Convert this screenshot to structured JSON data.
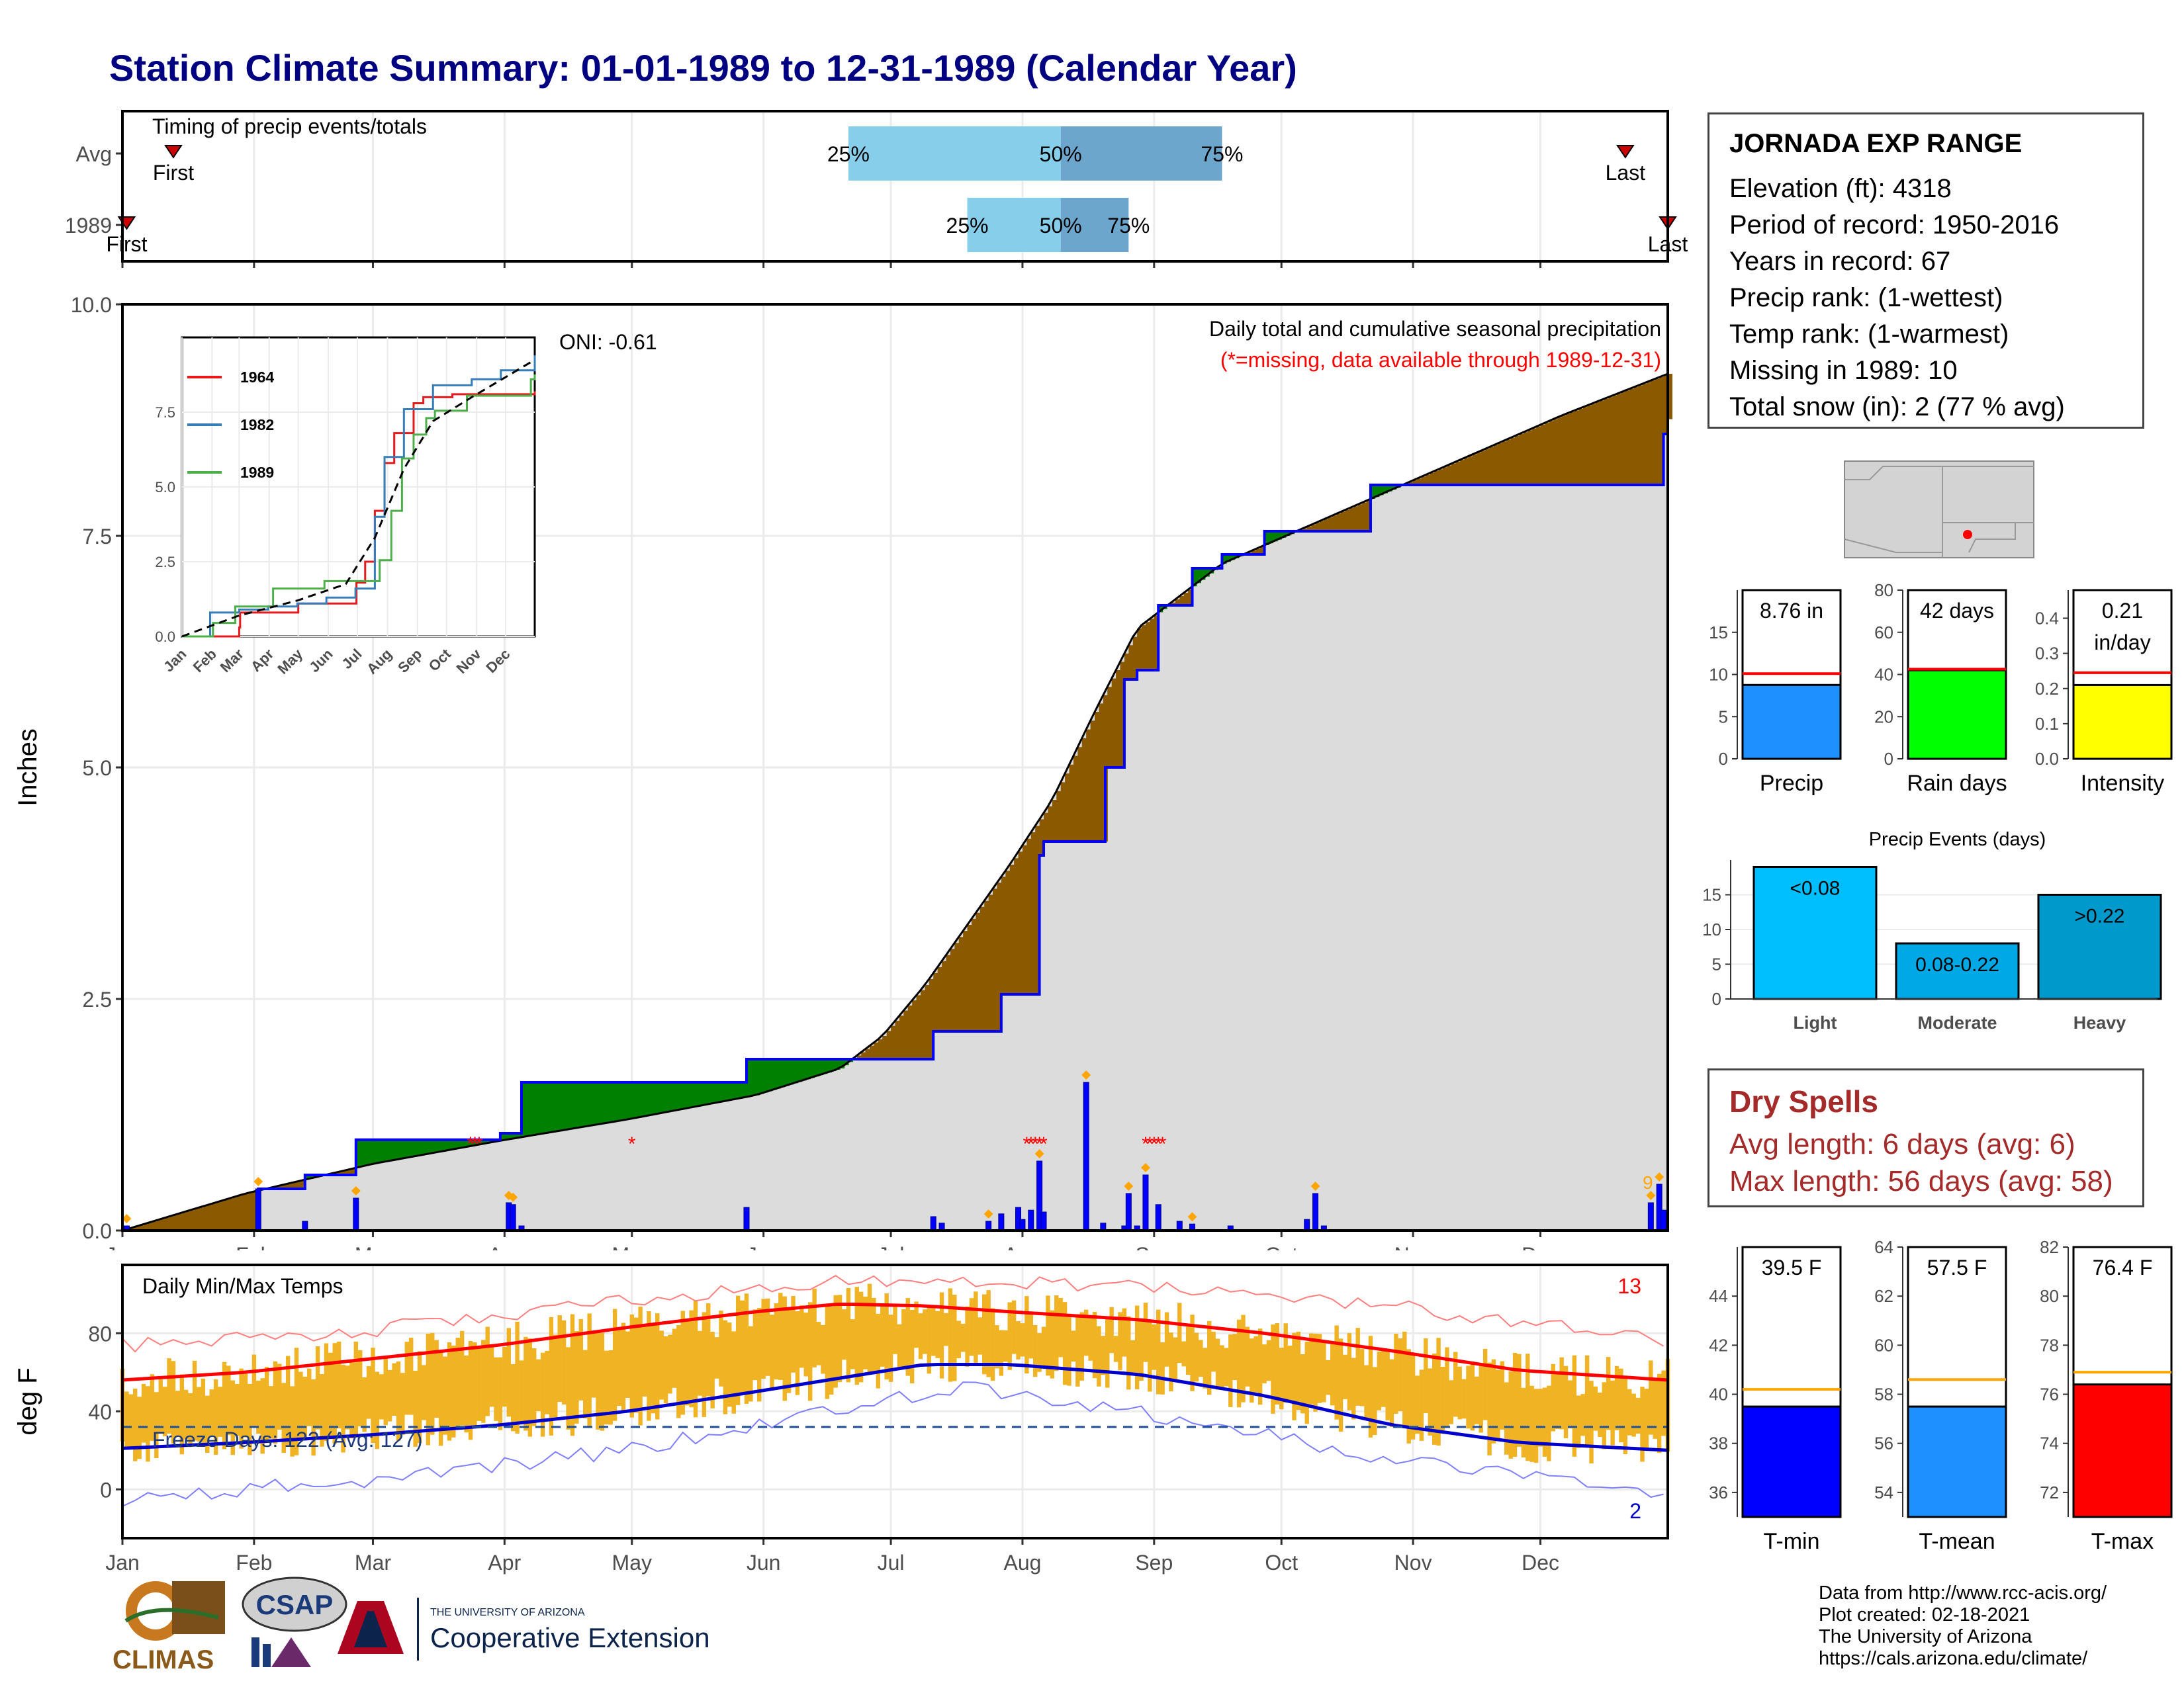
{
  "title": "Station Climate Summary: 01-01-1989 to 12-31-1989 (Calendar Year)",
  "timing": {
    "label": "Timing of precip events/totals",
    "rows": [
      "Avg",
      "1989"
    ],
    "avg": {
      "first": "First",
      "last": "Last",
      "q25": "25%",
      "q50": "50%",
      "q75": "75%",
      "first_doy": 13,
      "last_doy": 355,
      "p25_doy": 172,
      "p50_doy": 222,
      "p75_doy": 260
    },
    "y1989": {
      "first": "First",
      "last": "Last",
      "q25": "25%",
      "q50": "50%",
      "q75": "75%",
      "first_doy": 2,
      "last_doy": 365,
      "p25_doy": 200,
      "p50_doy": 222,
      "p75_doy": 238
    }
  },
  "station": {
    "name": "JORNADA EXP RANGE",
    "lines": [
      "Elevation (ft): 4318",
      "Period of record: 1950-2016",
      "Years in record: 67",
      "Precip rank:  (1-wettest)",
      "Temp rank:  (1-warmest)",
      "Missing in 1989: 10",
      "Total snow (in): 2 (77 % avg)"
    ]
  },
  "summary_bars": [
    {
      "label": "Precip",
      "value": 8.76,
      "value_text": "8.76 in",
      "avg": 10.1,
      "ylim": [
        0,
        20
      ],
      "ticks": [
        0,
        5,
        10,
        15
      ],
      "color": "#1e90ff"
    },
    {
      "label": "Rain days",
      "value": 42,
      "value_text": "42 days",
      "avg": 42.5,
      "ylim": [
        0,
        80
      ],
      "ticks": [
        0,
        20,
        40,
        60,
        80
      ],
      "color": "#00ff00"
    },
    {
      "label": "Intensity",
      "value": 0.21,
      "value_text": "0.21 in/day",
      "avg": 0.245,
      "ylim": [
        0,
        0.48
      ],
      "ticks": [
        0.0,
        0.1,
        0.2,
        0.3,
        0.4
      ],
      "color": "#ffff00"
    }
  ],
  "precip_events": {
    "title": "Precip Events (days)",
    "ylim": [
      0,
      20
    ],
    "ticks": [
      0,
      5,
      10,
      15
    ],
    "bars": [
      {
        "label": "Light",
        "value": 19,
        "text": "<0.08",
        "color": "#00bfff"
      },
      {
        "label": "Moderate",
        "value": 8,
        "text": "0.08-0.22",
        "color": "#00a9e6"
      },
      {
        "label": "Heavy",
        "value": 15,
        "text": ">0.22",
        "color": "#0099cc"
      }
    ]
  },
  "dry_spells": {
    "heading": "Dry Spells",
    "lines": [
      "Avg length: 6 days (avg: 6)",
      "Max length: 56 days (avg: 58)"
    ]
  },
  "temp_bars": [
    {
      "label": "T-min",
      "value": 39.5,
      "value_text": "39.5 F",
      "avg": 40.2,
      "ylim": [
        35,
        46
      ],
      "ticks": [
        36,
        38,
        40,
        42,
        44
      ],
      "color": "#0000ff"
    },
    {
      "label": "T-mean",
      "value": 57.5,
      "value_text": "57.5 F",
      "avg": 58.6,
      "ylim": [
        53,
        64
      ],
      "ticks": [
        54,
        56,
        58,
        60,
        62,
        64
      ],
      "color": "#1e90ff"
    },
    {
      "label": "T-max",
      "value": 76.4,
      "value_text": "76.4 F",
      "avg": 76.9,
      "ylim": [
        71,
        82
      ],
      "ticks": [
        72,
        74,
        76,
        78,
        80,
        82
      ],
      "color": "#ff0000"
    }
  ],
  "chart_data": [
    {
      "type": "area",
      "ylabel": "Inches",
      "ylim": [
        0,
        10
      ],
      "yticks": [
        0.0,
        2.5,
        5.0,
        7.5,
        10.0
      ],
      "months": [
        "Jan",
        "Feb",
        "Mar",
        "Apr",
        "May",
        "Jun",
        "Jul",
        "Aug",
        "Sep",
        "Oct",
        "Nov",
        "Dec"
      ],
      "annotation": "Daily total and cumulative seasonal precipitation",
      "missing_note": "(*=missing, data available through 1989-12-31)",
      "oni": "ONI: -0.61",
      "corner_count": "9",
      "avg_cumulative": {
        "doy": [
          1,
          30,
          60,
          90,
          120,
          150,
          170,
          180,
          190,
          200,
          210,
          220,
          230,
          240,
          260,
          280,
          300,
          320,
          340,
          365
        ],
        "inches": [
          0,
          0.4,
          0.72,
          0.97,
          1.2,
          1.46,
          1.75,
          2.1,
          2.65,
          3.3,
          3.95,
          4.65,
          5.6,
          6.5,
          7.2,
          7.6,
          8.0,
          8.4,
          8.8,
          9.25
        ]
      },
      "cumulative_1989": {
        "doy": [
          1,
          33,
          44,
          56,
          90,
          95,
          135,
          148,
          190,
          192,
          205,
          208,
          217,
          218,
          232,
          232.5,
          237,
          240,
          245,
          252,
          253,
          260,
          262,
          270,
          290,
          295,
          300,
          361,
          364,
          365
        ],
        "inches": [
          0,
          0.45,
          0.6,
          0.98,
          1.05,
          1.6,
          1.6,
          1.85,
          1.85,
          2.15,
          2.15,
          2.55,
          4.05,
          4.2,
          4.2,
          5.0,
          5.95,
          6.05,
          6.75,
          6.75,
          7.15,
          7.3,
          7.3,
          7.55,
          7.55,
          8.05,
          8.05,
          8.05,
          8.6,
          8.76
        ]
      },
      "daily_1989": {
        "doy": [
          2,
          33,
          44,
          56,
          92,
          93,
          95,
          148,
          192,
          194,
          205,
          208,
          212,
          213,
          215,
          217,
          218,
          228,
          232,
          237,
          238,
          240,
          242,
          245,
          250,
          253,
          262,
          280,
          282,
          284,
          361,
          363,
          364
        ],
        "inches": [
          0.05,
          0.45,
          0.1,
          0.35,
          0.3,
          0.28,
          0.05,
          0.25,
          0.15,
          0.08,
          0.1,
          0.18,
          0.25,
          0.12,
          0.22,
          0.75,
          0.2,
          1.6,
          0.08,
          0.05,
          0.4,
          0.05,
          0.6,
          0.28,
          0.1,
          0.07,
          0.05,
          0.12,
          0.4,
          0.05,
          0.3,
          0.5,
          0.22
        ]
      },
      "missing_doy": [
        83,
        84,
        85,
        121,
        214,
        215,
        216,
        217,
        218,
        242,
        243,
        244,
        245,
        246
      ]
    },
    {
      "type": "line",
      "title": "Daily Min/Max Temps",
      "ylabel": "deg F",
      "ylim": [
        -25,
        115
      ],
      "yticks": [
        0,
        40,
        80
      ],
      "months": [
        "Jan",
        "Feb",
        "Mar",
        "Apr",
        "May",
        "Jun",
        "Jul",
        "Aug",
        "Sep",
        "Oct",
        "Nov",
        "Dec"
      ],
      "freeze_label": "Freeze Days: 122 (Avg: 127)",
      "freeze_line": 32,
      "max_record_count": "13",
      "min_record_count": "2",
      "avg_tmax": {
        "doy": [
          1,
          30,
          60,
          90,
          120,
          150,
          170,
          190,
          210,
          240,
          270,
          300,
          330,
          365
        ],
        "F": [
          56,
          60,
          67,
          74,
          83,
          91,
          95,
          94,
          91,
          87,
          80,
          71,
          61,
          56
        ]
      },
      "avg_tmin": {
        "doy": [
          1,
          30,
          60,
          90,
          120,
          150,
          170,
          190,
          210,
          240,
          270,
          300,
          330,
          365
        ],
        "F": [
          21,
          24,
          28,
          33,
          40,
          50,
          57,
          64,
          64,
          59,
          48,
          33,
          24,
          20
        ]
      },
      "rec_tmax": {
        "doy": [
          1,
          60,
          120,
          170,
          200,
          240,
          300,
          365
        ],
        "F": [
          74,
          82,
          96,
          108,
          107,
          104,
          94,
          76
        ]
      },
      "rec_tmin": {
        "doy": [
          1,
          60,
          120,
          170,
          200,
          240,
          300,
          365
        ],
        "F": [
          -5,
          5,
          20,
          42,
          52,
          40,
          15,
          -2
        ]
      }
    },
    {
      "type": "line",
      "title": "Cumulative precip inset",
      "ylim": [
        0,
        10
      ],
      "yticks": [
        0.0,
        2.5,
        5.0,
        7.5
      ],
      "months": [
        "Jan",
        "Feb",
        "Mar",
        "Apr",
        "May",
        "Jun",
        "Jul",
        "Aug",
        "Sep",
        "Oct",
        "Nov",
        "Dec"
      ],
      "series": [
        {
          "name": "1964",
          "color": "#e41a1c",
          "doy": [
            1,
            60,
            61,
            120,
            121,
            180,
            181,
            190,
            200,
            210,
            220,
            240,
            250,
            280,
            365
          ],
          "inches": [
            0,
            0.3,
            0.8,
            0.8,
            1.1,
            1.1,
            1.8,
            2.5,
            4.2,
            5.8,
            6.8,
            7.8,
            8.0,
            8.1,
            8.2
          ]
        },
        {
          "name": "1982",
          "color": "#377eb8",
          "doy": [
            1,
            30,
            60,
            90,
            120,
            150,
            180,
            200,
            210,
            230,
            260,
            300,
            330,
            365
          ],
          "inches": [
            0,
            0.8,
            0.9,
            1.0,
            1.1,
            1.3,
            1.6,
            4.0,
            6.0,
            7.6,
            8.4,
            8.6,
            8.9,
            9.4
          ]
        },
        {
          "name": "1989",
          "color": "#4daf4a",
          "doy": [
            1,
            33,
            56,
            95,
            148,
            190,
            205,
            217,
            228,
            240,
            253,
            262,
            295,
            361,
            365
          ],
          "inches": [
            0,
            0.45,
            1.0,
            1.6,
            1.85,
            1.85,
            2.55,
            4.2,
            5.95,
            6.75,
            7.3,
            7.55,
            8.05,
            8.6,
            8.76
          ]
        }
      ],
      "avg_doy": [
        1,
        60,
        120,
        170,
        200,
        230,
        260,
        300,
        365
      ],
      "avg_inches": [
        0,
        0.7,
        1.2,
        1.75,
        3.3,
        5.6,
        7.2,
        8.0,
        9.25
      ]
    }
  ],
  "logos": {
    "climas": "CLIMAS",
    "csap": "CSAP",
    "ua_small": "THE UNIVERSITY OF ARIZONA",
    "ua_ext": "Cooperative Extension"
  },
  "credits": [
    "Data from http://www.rcc-acis.org/",
    "Plot created: 02-18-2021",
    "The University of Arizona",
    "https://cals.arizona.edu/climate/"
  ]
}
